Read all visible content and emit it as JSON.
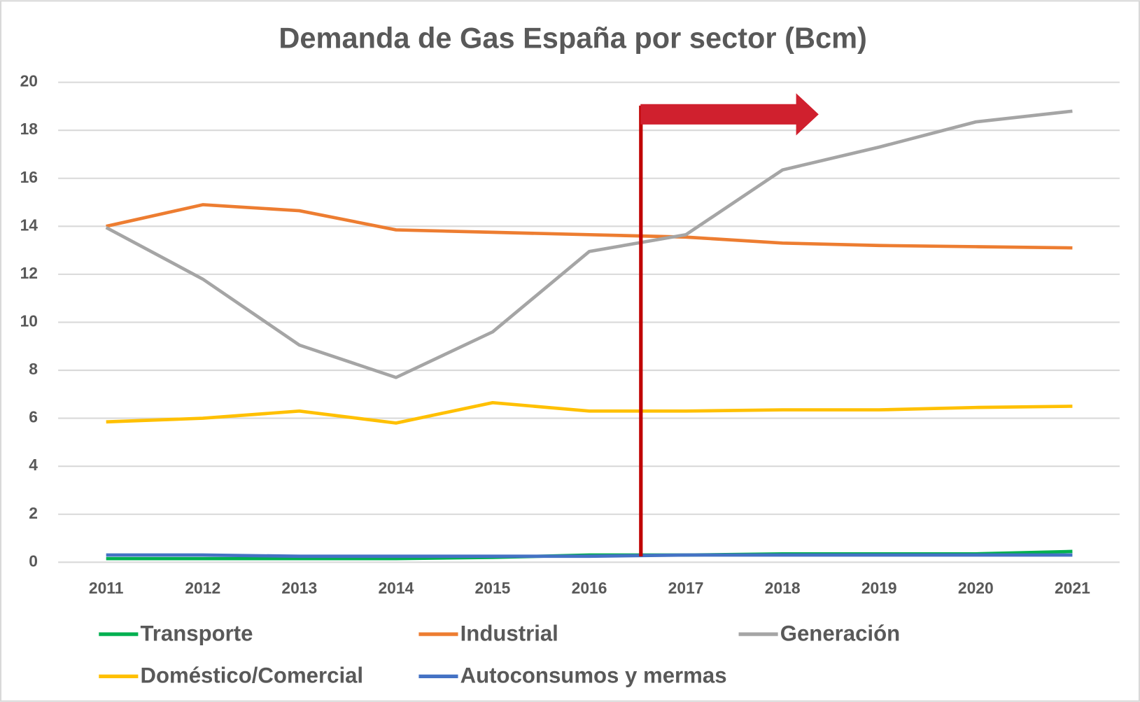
{
  "chart_data": {
    "type": "line",
    "title": "Demanda de Gas España por sector (Bcm)",
    "categories": [
      "2011",
      "2012",
      "2013",
      "2014",
      "2015",
      "2016",
      "2017",
      "2018",
      "2019",
      "2020",
      "2021"
    ],
    "series": [
      {
        "name": "Transporte",
        "color": "#00b050",
        "values": [
          0.15,
          0.15,
          0.15,
          0.15,
          0.2,
          0.3,
          0.3,
          0.35,
          0.35,
          0.35,
          0.45
        ]
      },
      {
        "name": "Industrial",
        "color": "#ed7d31",
        "values": [
          14.0,
          14.9,
          14.65,
          13.85,
          13.75,
          13.65,
          13.55,
          13.3,
          13.2,
          13.15,
          13.1
        ]
      },
      {
        "name": "Generación",
        "color": "#a5a5a5",
        "values": [
          13.95,
          11.8,
          9.05,
          7.7,
          9.6,
          12.95,
          13.65,
          16.35,
          17.3,
          18.35,
          18.8
        ]
      },
      {
        "name": "Doméstico/Comercial",
        "color": "#ffc000",
        "values": [
          5.85,
          6.0,
          6.3,
          5.8,
          6.65,
          6.3,
          6.3,
          6.35,
          6.35,
          6.45,
          6.5
        ]
      },
      {
        "name": "Autoconsumos y mermas",
        "color": "#4472c4",
        "values": [
          0.3,
          0.3,
          0.25,
          0.25,
          0.25,
          0.25,
          0.3,
          0.3,
          0.3,
          0.3,
          0.3
        ]
      }
    ],
    "ylim": [
      0,
      20
    ],
    "yticks": [
      0,
      2,
      4,
      6,
      8,
      10,
      12,
      14,
      16,
      18,
      20
    ],
    "grid": true,
    "legend": "bottom"
  }
}
